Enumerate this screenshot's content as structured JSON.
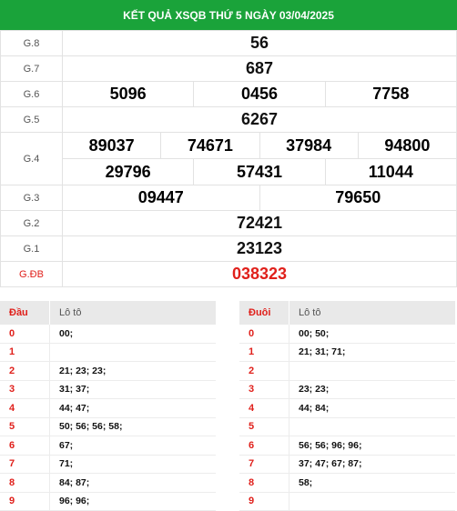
{
  "header": {
    "title": "KẾT QUẢ XSQB THỨ 5 NGÀY 03/04/2025"
  },
  "prizes": {
    "g8": {
      "label": "G.8",
      "values": [
        "56"
      ]
    },
    "g7": {
      "label": "G.7",
      "values": [
        "687"
      ]
    },
    "g6": {
      "label": "G.6",
      "values": [
        "5096",
        "0456",
        "7758"
      ]
    },
    "g5": {
      "label": "G.5",
      "values": [
        "6267"
      ]
    },
    "g4": {
      "label": "G.4",
      "row1": [
        "89037",
        "74671",
        "37984",
        "94800"
      ],
      "row2": [
        "29796",
        "57431",
        "11044"
      ]
    },
    "g3": {
      "label": "G.3",
      "values": [
        "09447",
        "79650"
      ]
    },
    "g2": {
      "label": "G.2",
      "values": [
        "72421"
      ]
    },
    "g1": {
      "label": "G.1",
      "values": [
        "23123"
      ]
    },
    "gdb": {
      "label": "G.ĐB",
      "values": [
        "038323"
      ]
    }
  },
  "colors": {
    "header_green": "#1aa33a",
    "accent_red": "#e0201b",
    "table_header_gray": "#e9e9e9"
  },
  "dau_table": {
    "col_head": "Đầu",
    "col_loto": "Lô tô",
    "rows": [
      {
        "digit": "0",
        "values": "00;"
      },
      {
        "digit": "1",
        "values": ""
      },
      {
        "digit": "2",
        "values": "21; 23; 23;"
      },
      {
        "digit": "3",
        "values": "31; 37;"
      },
      {
        "digit": "4",
        "values": "44; 47;"
      },
      {
        "digit": "5",
        "values": "50; 56; 56; 58;"
      },
      {
        "digit": "6",
        "values": "67;"
      },
      {
        "digit": "7",
        "values": "71;"
      },
      {
        "digit": "8",
        "values": "84; 87;"
      },
      {
        "digit": "9",
        "values": "96; 96;"
      }
    ]
  },
  "duoi_table": {
    "col_head": "Đuôi",
    "col_loto": "Lô tô",
    "rows": [
      {
        "digit": "0",
        "values": "00; 50;"
      },
      {
        "digit": "1",
        "values": "21; 31; 71;"
      },
      {
        "digit": "2",
        "values": ""
      },
      {
        "digit": "3",
        "values": "23; 23;"
      },
      {
        "digit": "4",
        "values": "44; 84;"
      },
      {
        "digit": "5",
        "values": ""
      },
      {
        "digit": "6",
        "values": "56; 56; 96; 96;"
      },
      {
        "digit": "7",
        "values": "37; 47; 67; 87;"
      },
      {
        "digit": "8",
        "values": "58;"
      },
      {
        "digit": "9",
        "values": ""
      }
    ]
  }
}
